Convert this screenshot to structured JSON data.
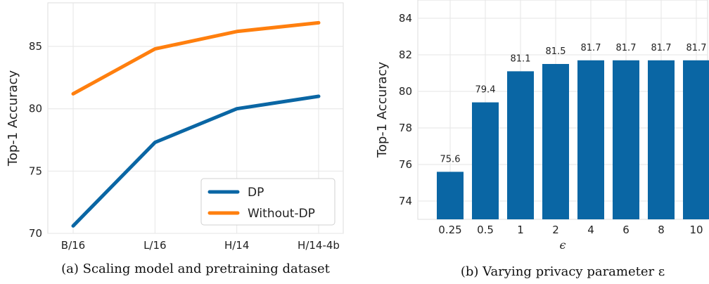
{
  "chart_data": [
    {
      "type": "line",
      "caption": "(a) Scaling model and pretraining dataset",
      "xlabel": "",
      "ylabel": "Top-1 Accuracy",
      "categories": [
        "B/16",
        "L/16",
        "H/14",
        "H/14-4b"
      ],
      "ylim": [
        70,
        88.5
      ],
      "yticks": [
        70,
        75,
        80,
        85
      ],
      "grid": true,
      "legend_position": "bottom-right",
      "series": [
        {
          "name": "DP",
          "color": "#0a66a4",
          "values": [
            70.6,
            77.3,
            80.0,
            81.0
          ]
        },
        {
          "name": "Without-DP",
          "color": "#ff7f0e",
          "values": [
            81.2,
            84.8,
            86.2,
            86.9
          ]
        }
      ]
    },
    {
      "type": "bar",
      "caption": "(b) Varying privacy parameter ε",
      "xlabel": "ϵ",
      "ylabel": "Top-1 Accuracy",
      "categories": [
        "0.25",
        "0.5",
        "1",
        "2",
        "4",
        "6",
        "8",
        "10"
      ],
      "values": [
        75.6,
        79.4,
        81.1,
        81.5,
        81.7,
        81.7,
        81.7,
        81.7
      ],
      "data_labels": [
        "75.6",
        "79.4",
        "81.1",
        "81.5",
        "81.7",
        "81.7",
        "81.7",
        "81.7"
      ],
      "ylim": [
        73,
        85
      ],
      "yticks": [
        74,
        76,
        78,
        80,
        82,
        84
      ],
      "grid": true,
      "color": "#0a66a4"
    }
  ]
}
